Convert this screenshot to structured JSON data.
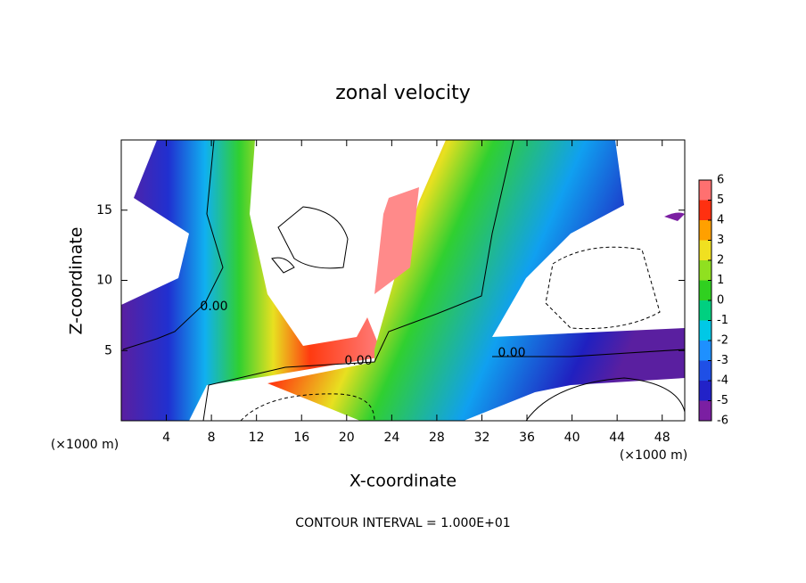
{
  "chart_data": {
    "type": "contour",
    "title": "zonal velocity",
    "x_label": "X-coordinate",
    "y_label": "Z-coordinate",
    "x_unit": "(×1000 m)",
    "footer": "CONTOUR INTERVAL = 1.000E+01",
    "xlim": [
      0,
      50
    ],
    "xticks": [
      4,
      8,
      12,
      16,
      20,
      24,
      28,
      32,
      36,
      40,
      44,
      48
    ],
    "ylim": [
      0,
      20
    ],
    "yticks": [
      5,
      10,
      15
    ],
    "contour_labels": [
      "0.00",
      "0.00",
      "0.00"
    ],
    "colorbar": {
      "levels": [
        -6,
        -5,
        -4,
        -3,
        -2,
        -1,
        0,
        1,
        2,
        3,
        4,
        5,
        6
      ],
      "colors": [
        "#7b1fa2",
        "#2222c8",
        "#1f4fe6",
        "#1e90ff",
        "#00c8e6",
        "#00d080",
        "#30d020",
        "#90e020",
        "#f0e020",
        "#ffa000",
        "#ff3010",
        "#ff7070"
      ]
    }
  }
}
